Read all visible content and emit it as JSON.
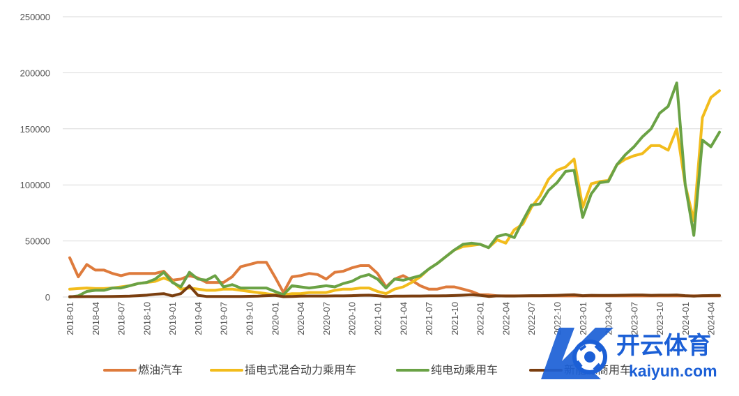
{
  "chart_data": {
    "type": "line",
    "title": "",
    "xlabel": "",
    "ylabel": "",
    "ylim": [
      0,
      250000
    ],
    "yticks": [
      0,
      50000,
      100000,
      150000,
      200000,
      250000
    ],
    "grid": "horizontal",
    "legend_position": "bottom",
    "x": [
      "2018-01",
      "2018-02",
      "2018-03",
      "2018-04",
      "2018-05",
      "2018-06",
      "2018-07",
      "2018-08",
      "2018-09",
      "2018-10",
      "2018-11",
      "2018-12",
      "2019-01",
      "2019-02",
      "2019-03",
      "2019-04",
      "2019-05",
      "2019-06",
      "2019-07",
      "2019-08",
      "2019-09",
      "2019-10",
      "2019-11",
      "2019-12",
      "2020-01",
      "2020-02",
      "2020-03",
      "2020-04",
      "2020-05",
      "2020-06",
      "2020-07",
      "2020-08",
      "2020-09",
      "2020-10",
      "2020-11",
      "2020-12",
      "2021-01",
      "2021-02",
      "2021-03",
      "2021-04",
      "2021-05",
      "2021-06",
      "2021-07",
      "2021-08",
      "2021-09",
      "2021-10",
      "2021-11",
      "2021-12",
      "2022-01",
      "2022-02",
      "2022-03",
      "2022-04",
      "2022-05",
      "2022-06",
      "2022-07",
      "2022-08",
      "2022-09",
      "2022-10",
      "2022-11",
      "2022-12",
      "2023-01",
      "2023-02",
      "2023-03",
      "2023-04",
      "2023-05",
      "2023-06",
      "2023-07",
      "2023-08",
      "2023-09",
      "2023-10",
      "2023-11",
      "2023-12",
      "2024-01",
      "2024-02",
      "2024-03",
      "2024-04",
      "2024-05"
    ],
    "x_tick_labels": [
      "2018-01",
      "2018-04",
      "2018-07",
      "2018-10",
      "2019-01",
      "2019-04",
      "2019-07",
      "2019-10",
      "2020-01",
      "2020-04",
      "2020-07",
      "2020-10",
      "2021-01",
      "2021-04",
      "2021-07",
      "2021-10",
      "2022-01",
      "2022-04",
      "2022-07",
      "2022-10",
      "2023-01",
      "2023-04",
      "2023-07",
      "2023-10",
      "2024-01",
      "2024-04"
    ],
    "series": [
      {
        "name": "燃油汽车",
        "color": "#de7b3c",
        "values": [
          35000,
          18000,
          29000,
          24000,
          24000,
          21000,
          19000,
          21000,
          21000,
          21000,
          21000,
          23000,
          15000,
          16000,
          19000,
          17000,
          13000,
          13000,
          13000,
          18000,
          27000,
          29000,
          31000,
          31000,
          18000,
          4000,
          18000,
          19000,
          21000,
          20000,
          16000,
          22000,
          23000,
          26000,
          28000,
          28000,
          21000,
          9000,
          16000,
          19000,
          15000,
          10000,
          7000,
          7000,
          9000,
          9000,
          7000,
          5000,
          2000,
          2000,
          1000,
          1000,
          1000,
          1000,
          1000,
          1000,
          1000,
          1000,
          1000,
          1000,
          1000,
          1000,
          1000,
          1000,
          1000,
          1000,
          1000,
          1000,
          1000,
          1000,
          1000,
          1000,
          1000,
          1000,
          1000,
          1000,
          1000
        ]
      },
      {
        "name": "插电式混合动力乘用车",
        "color": "#f2bc1c",
        "values": [
          7000,
          7500,
          8000,
          7500,
          7500,
          8000,
          9000,
          10000,
          12000,
          13000,
          14000,
          17000,
          14000,
          7000,
          8000,
          7000,
          6000,
          6000,
          7000,
          7000,
          6000,
          5000,
          4000,
          3000,
          2000,
          2000,
          3000,
          3000,
          4000,
          4000,
          4000,
          6000,
          7000,
          7000,
          8000,
          8000,
          5000,
          3000,
          7000,
          9000,
          13000,
          18000,
          25000,
          30000,
          36000,
          42000,
          45000,
          46000,
          47000,
          44000,
          51000,
          48000,
          60000,
          65000,
          80000,
          90000,
          105000,
          113000,
          116000,
          123000,
          80000,
          101000,
          103000,
          104000,
          118000,
          123000,
          126000,
          128000,
          135000,
          135000,
          131000,
          150000,
          100000,
          68000,
          160000,
          178000,
          184000
        ]
      },
      {
        "name": "纯电动乘用车",
        "color": "#6aa245",
        "values": [
          0,
          1000,
          5000,
          6000,
          6000,
          8000,
          8000,
          10000,
          12000,
          13000,
          16000,
          22000,
          13000,
          9000,
          22000,
          16000,
          15000,
          19000,
          9000,
          11000,
          8000,
          8000,
          8000,
          8000,
          5000,
          2000,
          10000,
          9000,
          8000,
          9000,
          10000,
          9000,
          12000,
          14000,
          18000,
          20000,
          16000,
          8000,
          16000,
          15000,
          17000,
          19000,
          25000,
          30000,
          36000,
          42000,
          47000,
          48000,
          47000,
          44000,
          54000,
          56000,
          53000,
          68000,
          82000,
          83000,
          95000,
          102000,
          112000,
          113000,
          71000,
          92000,
          102000,
          103000,
          118000,
          127000,
          134000,
          143000,
          150000,
          164000,
          170000,
          191000,
          100000,
          55000,
          140000,
          134000,
          147000
        ]
      },
      {
        "name": "新能源商用车",
        "color": "#7a3e0f",
        "values": [
          300,
          300,
          400,
          400,
          400,
          500,
          600,
          800,
          1200,
          1600,
          2500,
          3000,
          1000,
          3000,
          10000,
          1500,
          500,
          500,
          500,
          500,
          500,
          600,
          800,
          1200,
          1500,
          300,
          500,
          800,
          900,
          900,
          900,
          1000,
          1000,
          1200,
          1500,
          1600,
          1200,
          400,
          800,
          800,
          900,
          900,
          1000,
          1000,
          1100,
          1300,
          1600,
          2000,
          1500,
          500,
          1000,
          900,
          900,
          1000,
          1200,
          1200,
          1300,
          1500,
          1800,
          2000,
          1200,
          1500,
          1400,
          1400,
          1500,
          1600,
          1800,
          1800,
          1500,
          1600,
          1600,
          1800,
          1200,
          800,
          1200,
          1300,
          1400
        ]
      }
    ]
  },
  "watermark": {
    "cn_text": "开云体育",
    "url_text": "kaiyun.com"
  }
}
